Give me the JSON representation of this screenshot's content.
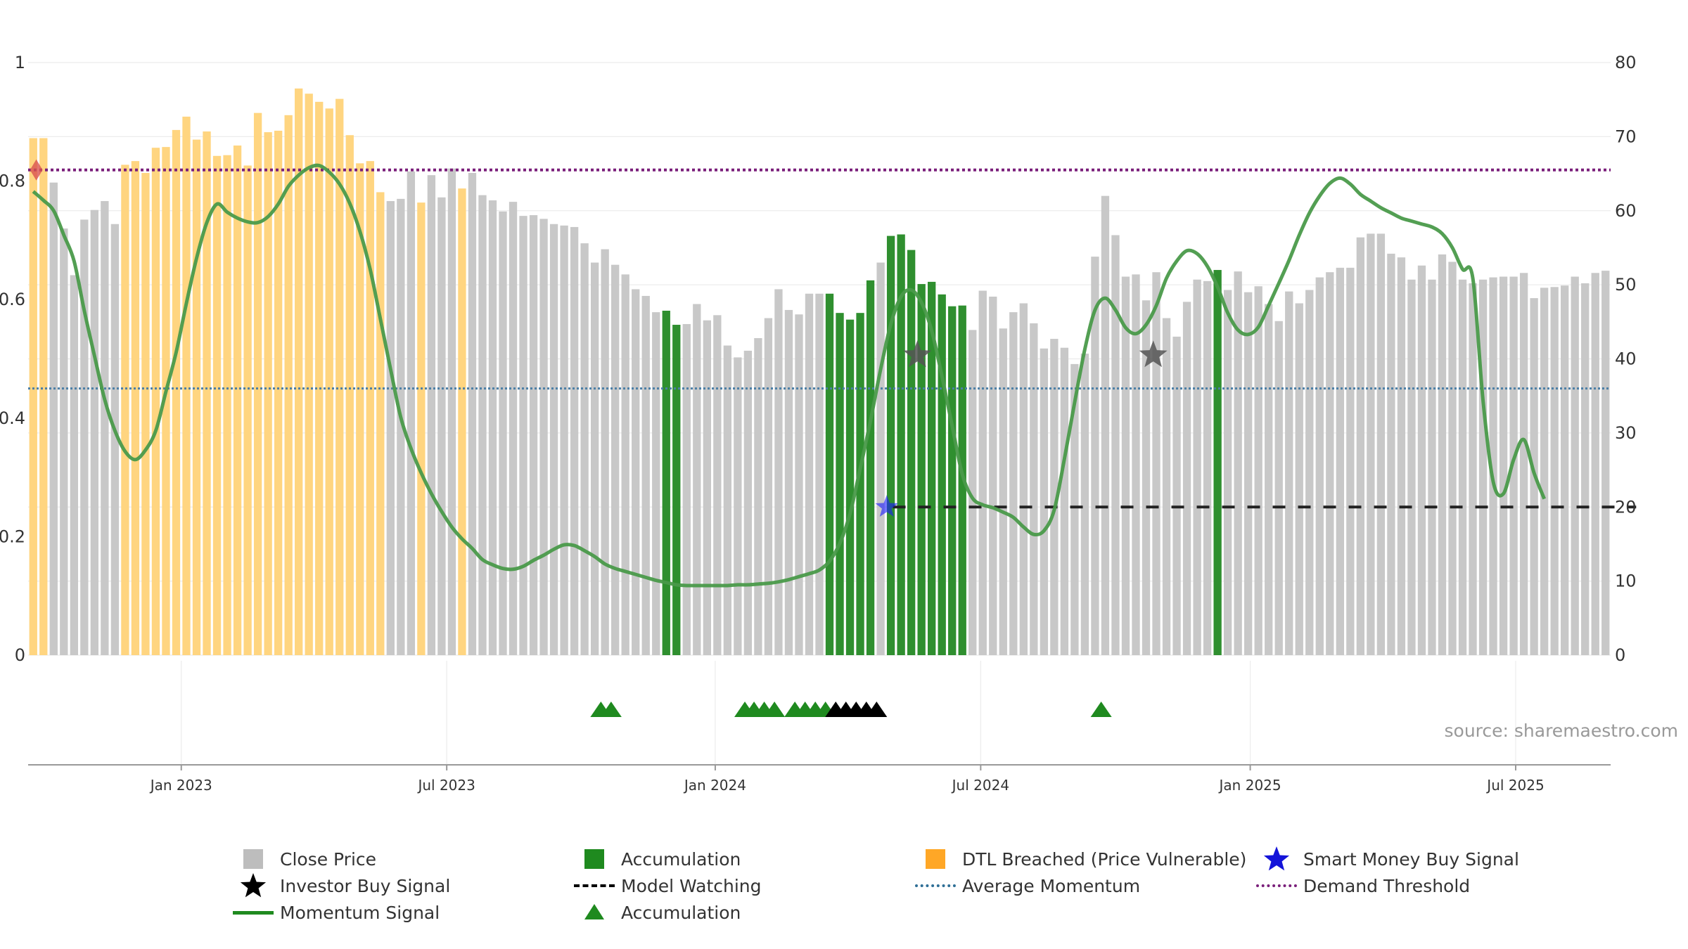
{
  "chart_data": {
    "type": "bar",
    "title": "",
    "source": "source: sharemaestro.com",
    "left_axis": {
      "ticks": [
        "0",
        "0.2",
        "0.4",
        "0.6",
        "0.8",
        "1"
      ],
      "range": [
        0,
        1
      ]
    },
    "right_axis": {
      "ticks": [
        "0",
        "10",
        "20",
        "30",
        "40",
        "50",
        "60",
        "70",
        "80"
      ],
      "range": [
        0,
        80
      ]
    },
    "x_axis": {
      "ticks": [
        {
          "label": "Jan 2023",
          "index": 14.5
        },
        {
          "label": "Jul 2023",
          "index": 40.5
        },
        {
          "label": "Jan 2024",
          "index": 66.8
        },
        {
          "label": "Jul 2024",
          "index": 92.8
        },
        {
          "label": "Jan 2025",
          "index": 119.2
        },
        {
          "label": "Jul 2025",
          "index": 145.2
        }
      ]
    },
    "close_price": [
      69.8,
      69.8,
      63.8,
      57.6,
      51.3,
      58.8,
      60.1,
      61.3,
      58.2,
      66.2,
      66.7,
      65.1,
      68.5,
      68.6,
      70.9,
      72.7,
      69.6,
      70.7,
      67.4,
      67.5,
      68.8,
      66.1,
      73.2,
      70.6,
      70.8,
      72.9,
      76.5,
      75.8,
      74.7,
      73.8,
      75.1,
      70.2,
      66.4,
      66.7,
      62.5,
      61.3,
      61.6,
      65.3,
      61.1,
      64.8,
      61.8,
      65.7,
      63.0,
      65.1,
      62.1,
      61.4,
      59.9,
      61.2,
      59.3,
      59.4,
      58.9,
      58.2,
      58.0,
      57.8,
      55.6,
      53.0,
      54.8,
      52.7,
      51.4,
      49.4,
      48.5,
      46.3,
      46.5,
      44.6,
      44.7,
      47.4,
      45.2,
      45.9,
      41.8,
      40.2,
      41.1,
      42.8,
      45.5,
      49.4,
      46.6,
      46.0,
      48.8,
      48.8,
      48.8,
      46.2,
      45.3,
      46.2,
      50.6,
      53.0,
      56.6,
      56.8,
      54.7,
      50.1,
      50.4,
      48.7,
      47.1,
      47.2,
      43.9,
      49.2,
      48.4,
      44.1,
      46.3,
      47.5,
      44.8,
      41.4,
      42.7,
      41.5,
      39.3,
      40.7,
      53.8,
      62.0,
      56.7,
      51.1,
      51.4,
      47.9,
      51.7,
      45.5,
      43.0,
      47.7,
      50.7,
      50.5,
      52.0,
      49.3,
      51.8,
      49.0,
      49.8,
      47.4,
      45.1,
      49.1,
      47.5,
      49.3,
      51.0,
      51.7,
      52.3,
      52.3,
      56.4,
      56.9,
      56.9,
      54.2,
      53.7,
      50.7,
      52.6,
      50.7,
      54.1,
      53.1,
      50.7,
      50.2,
      50.7,
      51.0,
      51.1,
      51.1,
      51.6,
      48.2,
      49.6,
      49.7,
      49.9,
      51.1,
      50.2,
      51.6,
      51.9
    ],
    "bar_state": "OOGGGGGGGOOOOOOOOOOOOOOOOOOOOOOOOOOGGGOGGGOGGGGGGGGGGGGGGGGGGGAAGGGGGGGGGGGGGGAAAAAGAAAAAAAAGGGGGGGGGGGGGGGGGGGGGGGGAGGGGGGGGGGGGGGGGGGGGGGGGGGGGGGGGGGGGGGGGGGGGGGGGGGGGGGGGGG",
    "momentum_signal": [
      62.6,
      61.4,
      60.0,
      56.7,
      53.2,
      46.5,
      40.4,
      34.5,
      30.3,
      27.5,
      26.4,
      27.7,
      30.3,
      35.6,
      40.9,
      47.5,
      53.6,
      58.4,
      60.9,
      59.8,
      59.0,
      58.5,
      58.4,
      59.2,
      60.9,
      63.3,
      64.8,
      65.8,
      66.1,
      65.2,
      63.6,
      61.0,
      57.2,
      52.1,
      45.4,
      38.6,
      32.1,
      27.9,
      24.6,
      21.8,
      19.4,
      17.3,
      15.7,
      14.4,
      12.9,
      12.2,
      11.7,
      11.6,
      12.0,
      12.8,
      13.5,
      14.3,
      14.9,
      14.8,
      14.1,
      13.3,
      12.3,
      11.7,
      11.3,
      10.9,
      10.5,
      10.1,
      9.8,
      9.5,
      9.4,
      9.4,
      9.4,
      9.4,
      9.4,
      9.5,
      9.5,
      9.6,
      9.7,
      9.9,
      10.2,
      10.6,
      11.0,
      11.5,
      12.7,
      15.1,
      19.1,
      25.2,
      31.6,
      38.6,
      44.7,
      48.4,
      49.3,
      47.6,
      43.8,
      37.7,
      31.0,
      24.4,
      21.2,
      20.3,
      19.9,
      19.3,
      18.6,
      17.3,
      16.3,
      16.8,
      19.6,
      26.5,
      34.1,
      41.3,
      46.6,
      48.2,
      46.6,
      44.2,
      43.4,
      44.6,
      47.2,
      50.9,
      53.2,
      54.6,
      54.2,
      52.5,
      49.7,
      46.2,
      43.9,
      43.3,
      44.3,
      47.2,
      50.2,
      53.3,
      56.7,
      59.7,
      62.0,
      63.7,
      64.4,
      63.6,
      62.2,
      61.3,
      60.4,
      59.7,
      59.0,
      58.6,
      58.2,
      57.8,
      56.9,
      55.0,
      52.1,
      50.9,
      34.4,
      23.4,
      21.8,
      26.4,
      29.1,
      24.6,
      21.1
    ],
    "demand_threshold": 65.5,
    "average_momentum": 36,
    "model_watching": {
      "level": 20,
      "from_index": 84.2,
      "to_index": 157
    },
    "smart_money_buy_signal": {
      "index": 83.6,
      "value": 20
    },
    "investor_buy_signals": [
      {
        "index": 86.6,
        "value": 40.5
      },
      {
        "index": 109.7,
        "value": 40.5
      }
    ],
    "red_marker": {
      "index": 0.3,
      "value": 65.5
    },
    "accumulation_triangles": [
      {
        "index": 55.6,
        "color": "green"
      },
      {
        "index": 56.6,
        "color": "green"
      },
      {
        "index": 69.7,
        "color": "green"
      },
      {
        "index": 70.6,
        "color": "green"
      },
      {
        "index": 71.6,
        "color": "green"
      },
      {
        "index": 72.6,
        "color": "green"
      },
      {
        "index": 74.6,
        "color": "green"
      },
      {
        "index": 75.6,
        "color": "green"
      },
      {
        "index": 76.6,
        "color": "green"
      },
      {
        "index": 77.6,
        "color": "green"
      },
      {
        "index": 78.6,
        "color": "black"
      },
      {
        "index": 79.6,
        "color": "black"
      },
      {
        "index": 80.6,
        "color": "black"
      },
      {
        "index": 81.6,
        "color": "black"
      },
      {
        "index": 82.6,
        "color": "black"
      },
      {
        "index": 104.6,
        "color": "green"
      }
    ],
    "colors": {
      "close_price": "#c8c8c8",
      "accumulation": "#2f8f2f",
      "dtl_breached": "#ffd580",
      "momentum": "#4a9a4a",
      "momentum_strong": "#1f8a1f",
      "demand_threshold": "#7a1f7a",
      "average_momentum": "#4a7ea6",
      "model_watching": "#222222",
      "smart_money": "#1a1aff",
      "investor": "#555555",
      "red_marker": "#d9534f"
    },
    "legend": [
      {
        "key": "close_price",
        "label": "Close Price",
        "symbol": "box",
        "color": "#bdbdbd"
      },
      {
        "key": "accumulation",
        "label": "Accumulation",
        "symbol": "box",
        "color": "#1f8a1f"
      },
      {
        "key": "dtl_breached",
        "label": "DTL Breached (Price Vulnerable)",
        "symbol": "box",
        "color": "#ffa726"
      },
      {
        "key": "smart_money",
        "label": "Smart Money Buy Signal",
        "symbol": "star",
        "color": "#1414d9"
      },
      {
        "key": "investor",
        "label": "Investor Buy Signal",
        "symbol": "star",
        "color": "#000000"
      },
      {
        "key": "model_watching",
        "label": "Model Watching",
        "symbol": "dash",
        "color": "#000000"
      },
      {
        "key": "average_momentum",
        "label": "Average Momentum",
        "symbol": "dot",
        "color": "#2f6f96"
      },
      {
        "key": "demand_threshold",
        "label": "Demand Threshold",
        "symbol": "dot",
        "color": "#7a1f7a"
      },
      {
        "key": "momentum_signal",
        "label": "Momentum Signal",
        "symbol": "line",
        "color": "#1f8a1f"
      },
      {
        "key": "accumulation_marker",
        "label": "Accumulation",
        "symbol": "triangle",
        "color": "#1f8a1f"
      }
    ]
  }
}
